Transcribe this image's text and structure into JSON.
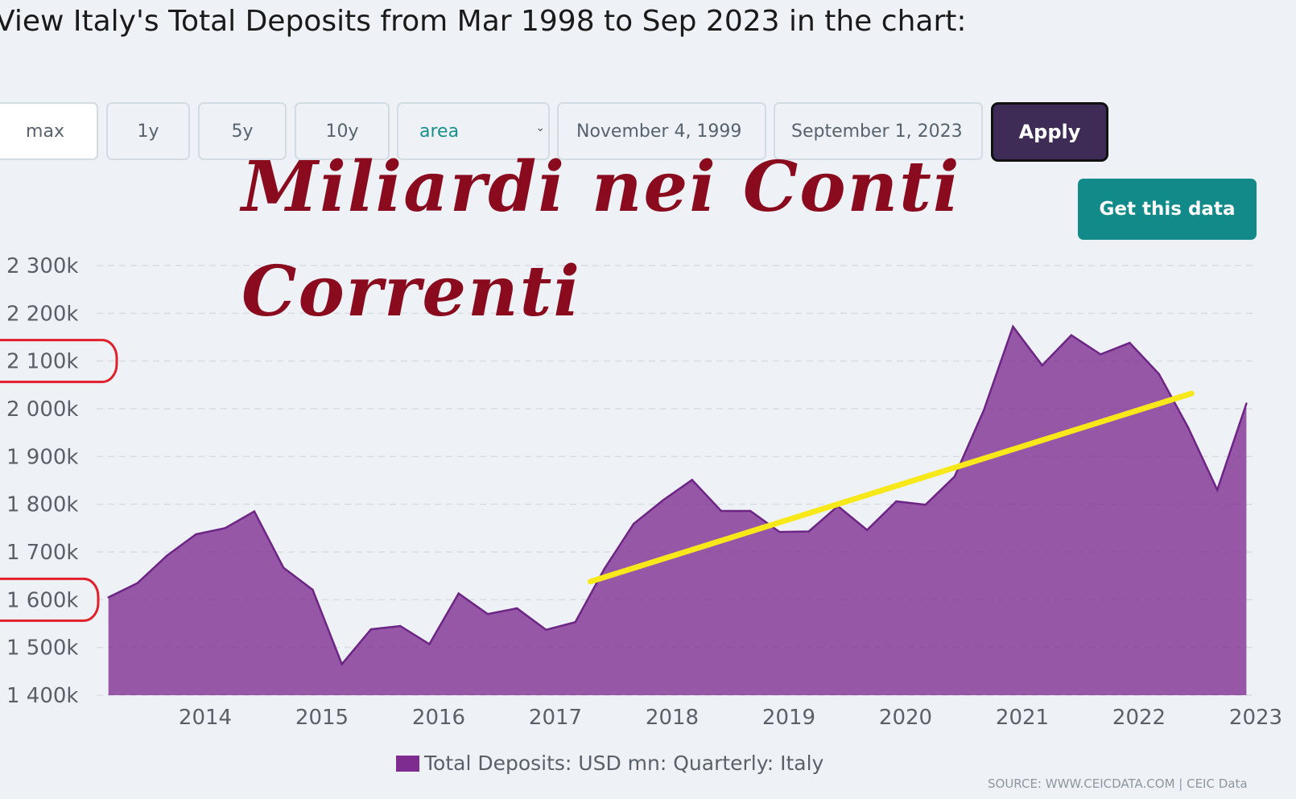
{
  "heading": "View Italy's Total Deposits from Mar 1998 to Sep 2023 in the chart:",
  "controls": {
    "range_buttons": [
      "max",
      "1y",
      "5y",
      "10y"
    ],
    "chart_type_value": "area",
    "date_from": "November 4, 1999",
    "date_to": "September 1, 2023",
    "apply_label": "Apply",
    "get_data_label": "Get this data"
  },
  "overlay_text": {
    "line1": "Miliardi nei Conti",
    "line2": "Correnti"
  },
  "source": "SOURCE: WWW.CEICDATA.COM | CEIC Data",
  "colors": {
    "area_fill": "#7e2c8f",
    "area_line": "#6d2585",
    "trend_line": "#f7e81a",
    "highlight_circle": "#e0202c",
    "overlay_text": "#8a0a1e"
  },
  "chart_data": {
    "type": "area",
    "title": "",
    "xlabel": "",
    "ylabel": "",
    "ylim": [
      1400,
      2300
    ],
    "y_ticks": [
      2300,
      2200,
      2100,
      2000,
      1900,
      1800,
      1700,
      1600,
      1500,
      1400
    ],
    "y_tick_labels": [
      "2 300k",
      "2 200k",
      "2 100k",
      "2 000k",
      "1 900k",
      "1 800k",
      "1 700k",
      "1 600k",
      "1 500k",
      "1 400k"
    ],
    "x_ticks": [
      2014,
      2015,
      2016,
      2017,
      2018,
      2019,
      2020,
      2021,
      2022,
      2023
    ],
    "x_tick_labels": [
      "2014",
      "2015",
      "2016",
      "2017",
      "2018",
      "2019",
      "2020",
      "2021",
      "2022",
      "2023"
    ],
    "grid": true,
    "legend_position": "bottom-center",
    "highlighted_ticks": [
      "2 100k",
      "1 600k"
    ],
    "series": [
      {
        "name": "Total Deposits: USD mn: Quarterly: Italy",
        "x": [
          2013.17,
          2013.42,
          2013.67,
          2013.92,
          2014.17,
          2014.42,
          2014.67,
          2014.92,
          2015.17,
          2015.42,
          2015.67,
          2015.92,
          2016.17,
          2016.42,
          2016.67,
          2016.92,
          2017.17,
          2017.42,
          2017.67,
          2017.92,
          2018.17,
          2018.42,
          2018.67,
          2018.92,
          2019.17,
          2019.42,
          2019.67,
          2019.92,
          2020.17,
          2020.42,
          2020.67,
          2020.92,
          2021.17,
          2021.42,
          2021.67,
          2021.92,
          2022.17,
          2022.42,
          2022.67,
          2022.92
        ],
        "values": [
          1605,
          1635,
          1692,
          1737,
          1750,
          1785,
          1667,
          1621,
          1465,
          1538,
          1545,
          1507,
          1613,
          1570,
          1582,
          1537,
          1553,
          1665,
          1759,
          1808,
          1851,
          1786,
          1786,
          1742,
          1743,
          1796,
          1746,
          1806,
          1799,
          1858,
          1997,
          2172,
          2091,
          2154,
          2114,
          2138,
          2073,
          1961,
          1830,
          2011
        ]
      }
    ],
    "trend_line": {
      "x": [
        2017.3,
        2022.45
      ],
      "y": [
        1638,
        2032
      ]
    }
  }
}
